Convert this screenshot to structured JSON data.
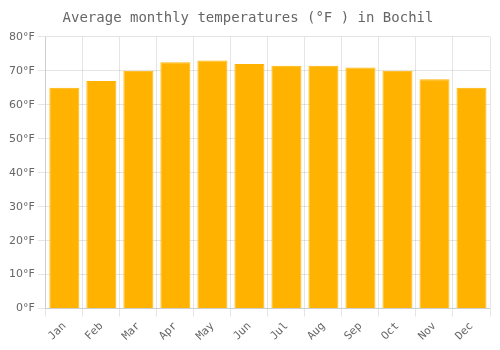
{
  "chart_data": {
    "type": "bar",
    "title": "Average monthly temperatures (°F ) in Bochil",
    "categories": [
      "Jan",
      "Feb",
      "Mar",
      "Apr",
      "May",
      "Jun",
      "Jul",
      "Aug",
      "Sep",
      "Oct",
      "Nov",
      "Dec"
    ],
    "values": [
      65,
      67,
      70,
      72.5,
      73,
      72,
      71.5,
      71.5,
      71,
      70,
      67.5,
      65
    ],
    "color": "#FFB300",
    "ylim": [
      0,
      80
    ],
    "yticks": [
      {
        "value": 0,
        "label": "0°F"
      },
      {
        "value": 10,
        "label": "10°F"
      },
      {
        "value": 20,
        "label": "20°F"
      },
      {
        "value": 30,
        "label": "30°F"
      },
      {
        "value": 40,
        "label": "40°F"
      },
      {
        "value": 50,
        "label": "50°F"
      },
      {
        "value": 60,
        "label": "60°F"
      },
      {
        "value": 70,
        "label": "70°F"
      },
      {
        "value": 80,
        "label": "80°F"
      }
    ],
    "grid": true
  }
}
